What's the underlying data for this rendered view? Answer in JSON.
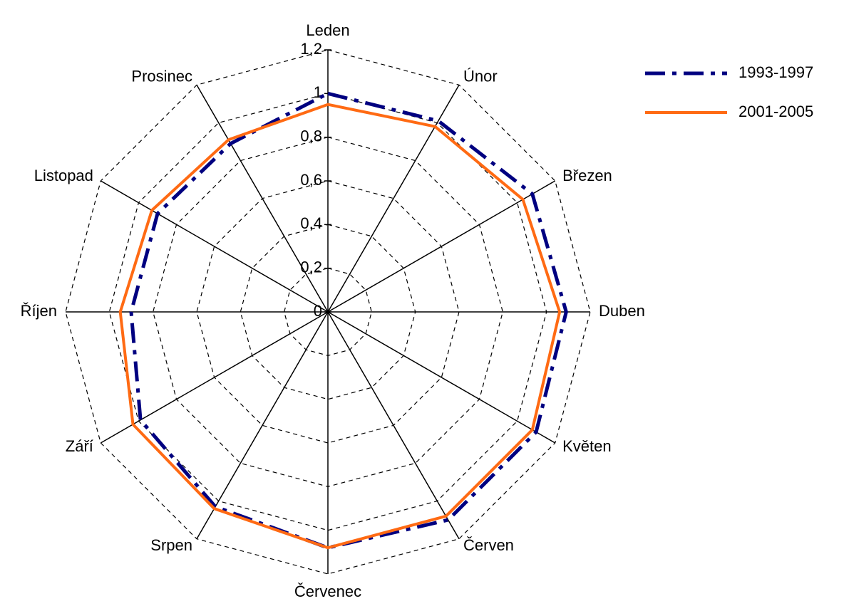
{
  "chart_data": {
    "type": "radar",
    "categories": [
      "Leden",
      "Únor",
      "Březen",
      "Duben",
      "Květen",
      "Červen",
      "Červenec",
      "Srpen",
      "Září",
      "Říjen",
      "Listopad",
      "Prosinec"
    ],
    "series": [
      {
        "name": "1993-1997",
        "color": "#000080",
        "values": [
          1.0,
          1.01,
          1.08,
          1.09,
          1.1,
          1.1,
          1.08,
          1.03,
          0.99,
          0.9,
          0.9,
          0.89
        ]
      },
      {
        "name": "2001-2005",
        "color": "#ff6a13",
        "values": [
          0.95,
          0.98,
          1.03,
          1.06,
          1.08,
          1.08,
          1.08,
          1.04,
          1.03,
          0.95,
          0.93,
          0.91
        ]
      }
    ],
    "ylim": [
      0,
      1.2
    ],
    "yticks": [
      0,
      {
        "value": 0.2,
        "label": "0,2"
      },
      {
        "value": 0.4,
        "label": "0,4"
      },
      {
        "value": 0.6,
        "label": "0,6"
      },
      {
        "value": 0.8,
        "label": "0,8"
      },
      1,
      {
        "value": 1.2,
        "label": "1,2"
      }
    ],
    "grid": true
  }
}
